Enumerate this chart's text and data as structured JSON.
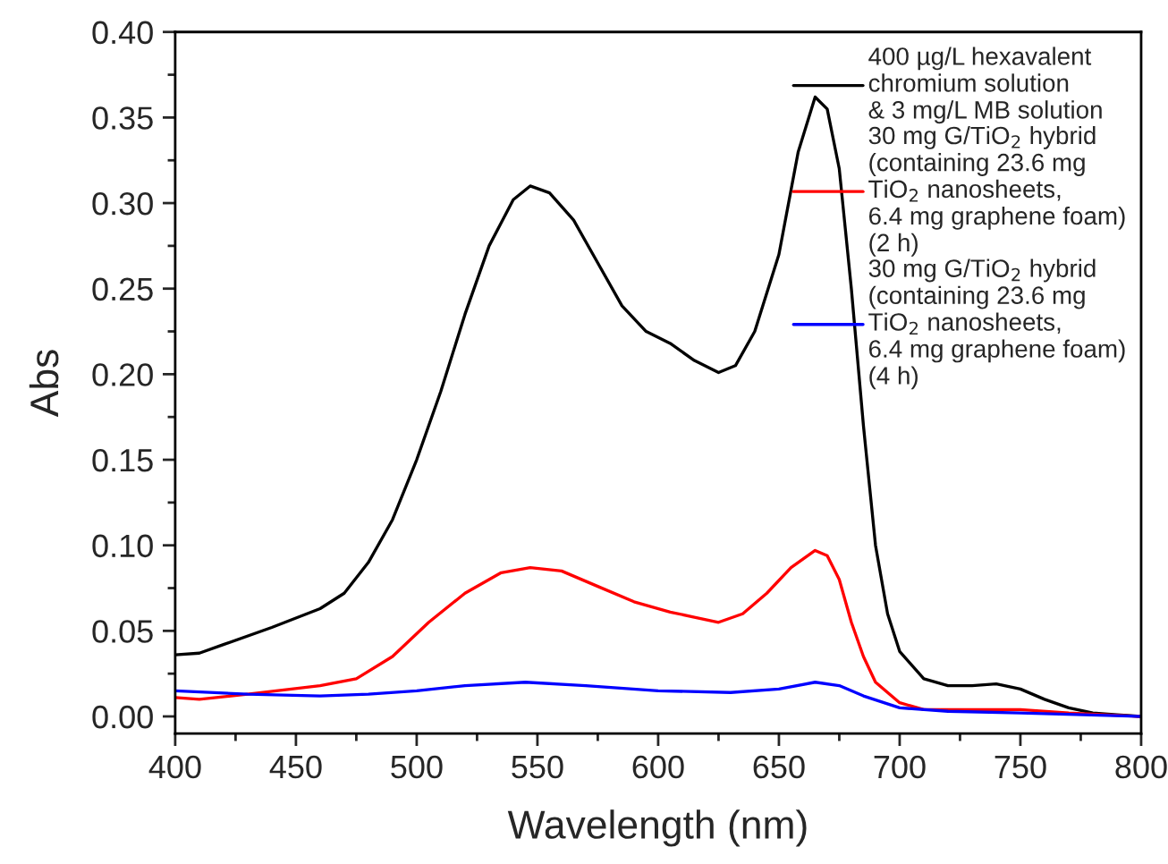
{
  "chart_data": {
    "type": "line",
    "xlabel": "Wavelength (nm)",
    "ylabel": "Abs",
    "xlim": [
      400,
      800
    ],
    "xticks": [
      400,
      450,
      500,
      550,
      600,
      650,
      700,
      750,
      800
    ],
    "ylim": [
      -0.01,
      0.4
    ],
    "yticks": [
      {
        "value": 0,
        "label": "0.00"
      },
      {
        "value": 0.05,
        "label": "0.05"
      },
      {
        "value": 0.1,
        "label": "0.10"
      },
      {
        "value": 0.15,
        "label": "0.15"
      },
      {
        "value": 0.2,
        "label": "0.20"
      },
      {
        "value": 0.25,
        "label": "0.25"
      },
      {
        "value": 0.3,
        "label": "0.30"
      },
      {
        "value": 0.35,
        "label": "0.35"
      },
      {
        "value": 0.4,
        "label": "0.40"
      }
    ],
    "grid": false,
    "legend": "top right",
    "line_style": "solid",
    "marker": "none",
    "series": [
      {
        "name": "400 µg/L hexavalent\nchromium solution\n& 3 mg/L MB solution",
        "color": "#000000",
        "x": [
          400,
          410,
          420,
          440,
          460,
          470,
          480,
          490,
          500,
          510,
          520,
          530,
          540,
          547,
          555,
          565,
          575,
          585,
          595,
          605,
          615,
          625,
          632,
          640,
          650,
          658,
          665,
          670,
          675,
          680,
          685,
          690,
          695,
          700,
          710,
          720,
          730,
          740,
          750,
          760,
          770,
          780,
          790,
          800
        ],
        "values": [
          0.036,
          0.037,
          0.042,
          0.052,
          0.063,
          0.072,
          0.09,
          0.115,
          0.15,
          0.19,
          0.235,
          0.275,
          0.302,
          0.31,
          0.306,
          0.29,
          0.265,
          0.24,
          0.225,
          0.218,
          0.208,
          0.201,
          0.205,
          0.225,
          0.27,
          0.33,
          0.362,
          0.355,
          0.32,
          0.25,
          0.17,
          0.1,
          0.06,
          0.038,
          0.022,
          0.018,
          0.018,
          0.019,
          0.016,
          0.01,
          0.005,
          0.002,
          0.001,
          0.0
        ]
      },
      {
        "name": "30 mg G/TiO$_{2}$ hybrid\n(containing 23.6 mg\nTiO$_{2}$ nanosheets,\n6.4 mg graphene foam)\n(2 h)",
        "color": "#ff0000",
        "x": [
          400,
          410,
          430,
          460,
          475,
          490,
          505,
          520,
          535,
          547,
          560,
          575,
          590,
          605,
          615,
          625,
          635,
          645,
          655,
          665,
          670,
          675,
          680,
          685,
          690,
          700,
          710,
          730,
          750,
          770,
          800
        ],
        "values": [
          0.011,
          0.01,
          0.013,
          0.018,
          0.022,
          0.035,
          0.055,
          0.072,
          0.084,
          0.087,
          0.085,
          0.076,
          0.067,
          0.061,
          0.058,
          0.055,
          0.06,
          0.072,
          0.087,
          0.097,
          0.094,
          0.08,
          0.055,
          0.035,
          0.02,
          0.008,
          0.004,
          0.004,
          0.004,
          0.002,
          0.0
        ]
      },
      {
        "name": "30 mg G/TiO$_{2}$ hybrid\n(containing 23.6 mg\nTiO$_{2}$ nanosheets,\n6.4 mg graphene foam)\n(4 h)",
        "color": "#0000ff",
        "x": [
          400,
          430,
          460,
          480,
          500,
          520,
          545,
          570,
          600,
          630,
          650,
          665,
          675,
          685,
          700,
          720,
          750,
          800
        ],
        "values": [
          0.015,
          0.013,
          0.012,
          0.013,
          0.015,
          0.018,
          0.02,
          0.018,
          0.015,
          0.014,
          0.016,
          0.02,
          0.018,
          0.012,
          0.005,
          0.003,
          0.002,
          0.0
        ]
      }
    ]
  }
}
